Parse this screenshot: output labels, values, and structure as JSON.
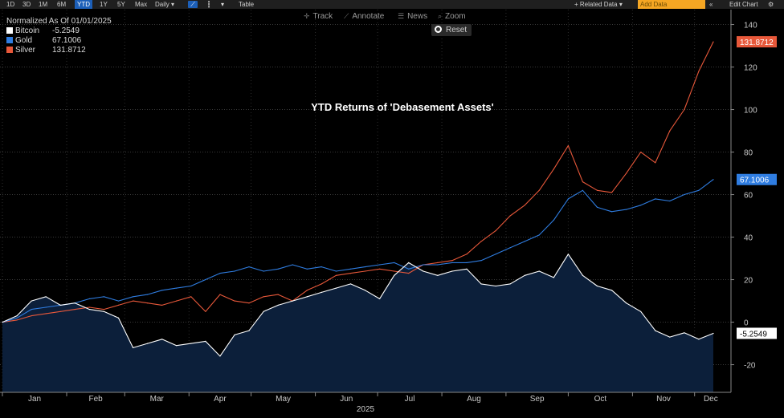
{
  "toolbar": {
    "ranges": [
      "1D",
      "3D",
      "1M",
      "6M",
      "YTD",
      "1Y",
      "5Y",
      "Max"
    ],
    "active_range": "YTD",
    "frequency": "Daily ▾",
    "table_label": "Table",
    "related_label": "+ Related Data ▾",
    "add_data_placeholder": "Add Data",
    "edit_label": "Edit Chart"
  },
  "subtoolbar": {
    "track": "Track",
    "annotate": "Annotate",
    "news": "News",
    "zoom": "Zoom",
    "reset": "Reset"
  },
  "legend": {
    "heading": "Normalized As Of 01/01/2025",
    "items": [
      {
        "name": "Bitcoin",
        "value": "-5.2549",
        "color": "#ffffff"
      },
      {
        "name": "Gold",
        "value": "67.1006",
        "color": "#2f7de1"
      },
      {
        "name": "Silver",
        "value": "131.8712",
        "color": "#e8583a"
      }
    ]
  },
  "chart_data": {
    "type": "line",
    "title": "YTD Returns of 'Debasement Assets'",
    "xlabel": "2025",
    "ylabel": "",
    "x_ticks": [
      "Jan",
      "Feb",
      "Mar",
      "Apr",
      "May",
      "Jun",
      "Jul",
      "Aug",
      "Sep",
      "Oct",
      "Nov",
      "Dec"
    ],
    "y_ticks": [
      -20,
      0,
      20,
      40,
      60,
      80,
      100,
      120,
      140
    ],
    "ylim": [
      -33,
      147
    ],
    "xlim": [
      0,
      50
    ],
    "grid": true,
    "x_unit": "weeks since 2025-01-01",
    "series": [
      {
        "name": "Bitcoin",
        "color": "#ffffff",
        "fill": "#0c1f3a",
        "last_label": "-5.2549",
        "x": [
          0,
          1,
          2,
          3,
          4,
          5,
          6,
          7,
          8,
          9,
          10,
          11,
          12,
          13,
          14,
          15,
          16,
          17,
          18,
          19,
          20,
          21,
          22,
          23,
          24,
          25,
          26,
          27,
          28,
          29,
          30,
          31,
          32,
          33,
          34,
          35,
          36,
          37,
          38,
          39,
          40,
          41,
          42,
          43,
          44,
          45,
          46,
          47,
          48,
          49
        ],
        "y": [
          0,
          3,
          10,
          12,
          8,
          9,
          6,
          5,
          2,
          -12,
          -10,
          -8,
          -11,
          -10,
          -9,
          -16,
          -6,
          -4,
          5,
          8,
          10,
          12,
          14,
          16,
          18,
          15,
          11,
          22,
          28,
          24,
          22,
          24,
          25,
          18,
          17,
          18,
          22,
          24,
          21,
          32,
          22,
          17,
          15,
          9,
          5,
          -4,
          -7,
          -5,
          -8,
          -5.2549
        ]
      },
      {
        "name": "Gold",
        "color": "#2f7de1",
        "last_label": "67.1006",
        "x": [
          0,
          1,
          2,
          3,
          4,
          5,
          6,
          7,
          8,
          9,
          10,
          11,
          12,
          13,
          14,
          15,
          16,
          17,
          18,
          19,
          20,
          21,
          22,
          23,
          24,
          25,
          26,
          27,
          28,
          29,
          30,
          31,
          32,
          33,
          34,
          35,
          36,
          37,
          38,
          39,
          40,
          41,
          42,
          43,
          44,
          45,
          46,
          47,
          48,
          49
        ],
        "y": [
          0,
          2,
          6,
          7,
          8,
          9,
          11,
          12,
          10,
          12,
          13,
          15,
          16,
          17,
          20,
          23,
          24,
          26,
          24,
          25,
          27,
          25,
          26,
          24,
          25,
          26,
          27,
          28,
          25,
          27,
          27,
          28,
          28,
          29,
          32,
          35,
          38,
          41,
          48,
          58,
          62,
          54,
          52,
          53,
          55,
          58,
          57,
          60,
          62,
          67.1006
        ]
      },
      {
        "name": "Silver",
        "color": "#e8583a",
        "last_label": "131.8712",
        "x": [
          0,
          1,
          2,
          3,
          4,
          5,
          6,
          7,
          8,
          9,
          10,
          11,
          12,
          13,
          14,
          15,
          16,
          17,
          18,
          19,
          20,
          21,
          22,
          23,
          24,
          25,
          26,
          27,
          28,
          29,
          30,
          31,
          32,
          33,
          34,
          35,
          36,
          37,
          38,
          39,
          40,
          41,
          42,
          43,
          44,
          45,
          46,
          47,
          48,
          49
        ],
        "y": [
          0,
          1,
          3,
          4,
          5,
          6,
          7,
          6,
          8,
          10,
          9,
          8,
          10,
          12,
          5,
          13,
          10,
          9,
          12,
          13,
          10,
          15,
          18,
          22,
          23,
          24,
          25,
          24,
          23,
          27,
          28,
          29,
          32,
          38,
          43,
          50,
          55,
          62,
          72,
          83,
          66,
          62,
          61,
          70,
          80,
          75,
          90,
          100,
          118,
          131.8712
        ]
      }
    ]
  }
}
